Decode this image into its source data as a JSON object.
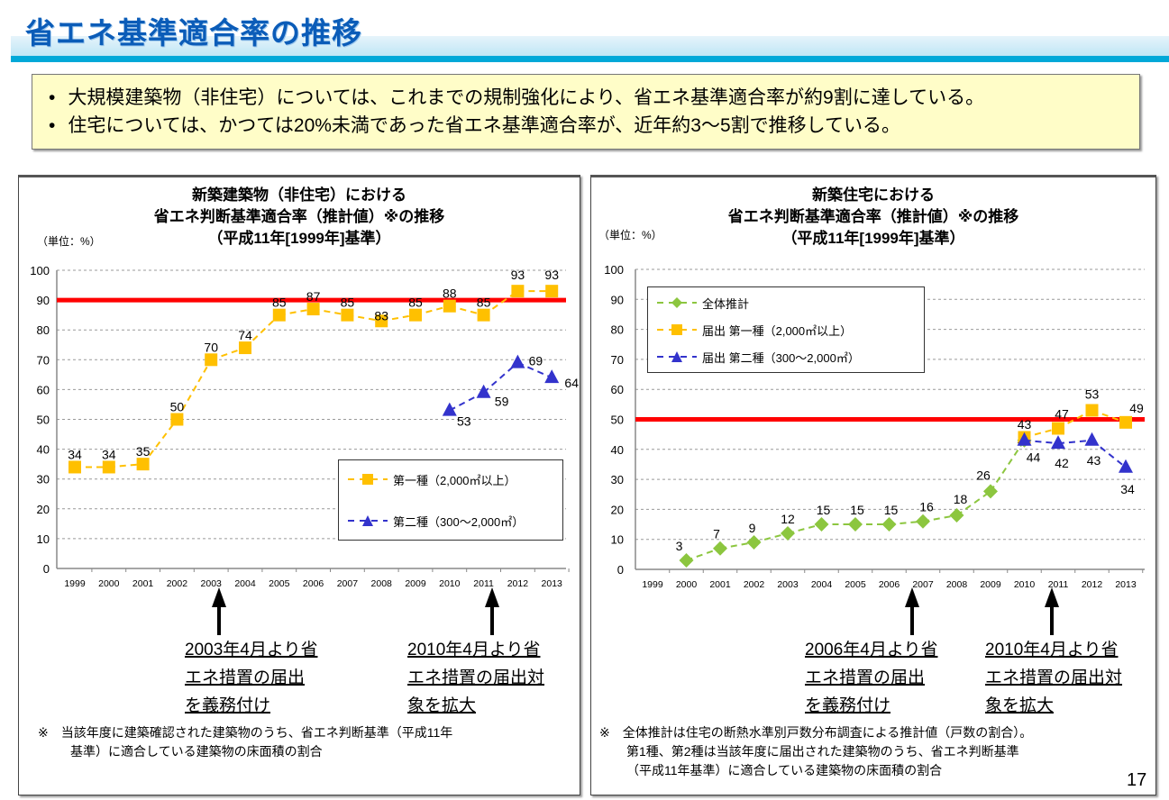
{
  "header": {
    "title": "省エネ基準適合率の推移"
  },
  "summary": [
    "大規模建築物（非住宅）については、これまでの規制強化により、省エネ基準適合率が約9割に達している。",
    "住宅については、かつては20%未満であった省エネ基準適合率が、近年約3～5割で推移している。"
  ],
  "colors": {
    "first_class": "#ffc000",
    "second_class": "#3333cc",
    "overall": "#8cc63f",
    "reference_line": "#ff0000",
    "title": "#0b5cb8"
  },
  "chart_data": [
    {
      "type": "line",
      "title": [
        "新築建築物（非住宅）における",
        "省エネ判断基準適合率（推計値）※の推移",
        "（平成11年[1999年]基準）"
      ],
      "unit": "（単位：%）",
      "categories": [
        "1999",
        "2000",
        "2001",
        "2002",
        "2003",
        "2004",
        "2005",
        "2006",
        "2007",
        "2008",
        "2009",
        "2010",
        "2011",
        "2012",
        "2013"
      ],
      "ylim": [
        0,
        100
      ],
      "yticks": [
        "0",
        "10",
        "20",
        "30",
        "40",
        "50",
        "60",
        "70",
        "80",
        "90",
        "100"
      ],
      "grid": true,
      "reference_line": 90,
      "legend_position": "bottom-right",
      "series": [
        {
          "name": "第一種（2,000㎡以上）",
          "marker": "square",
          "color": "#ffc000",
          "values": [
            34,
            34,
            35,
            50,
            70,
            74,
            85,
            87,
            85,
            83,
            85,
            88,
            85,
            93,
            93
          ]
        },
        {
          "name": "第二種（300～2,000㎡）",
          "marker": "triangle",
          "color": "#3333cc",
          "values": [
            null,
            null,
            null,
            null,
            null,
            null,
            null,
            null,
            null,
            null,
            null,
            53,
            59,
            69,
            64
          ]
        }
      ],
      "annotations": [
        {
          "year": "2003",
          "text": [
            "2003年4月より省",
            "エネ措置の届出",
            "を義務付け"
          ]
        },
        {
          "year": "2011",
          "text": [
            "2010年4月より省",
            "エネ措置の届出対",
            "象を拡大"
          ]
        }
      ],
      "footnote": [
        "※　当該年度に建築確認された建築物のうち、省エネ判断基準（平成11年",
        "基準）に適合している建築物の床面積の割合"
      ]
    },
    {
      "type": "line",
      "title": [
        "新築住宅における",
        "省エネ判断基準適合率（推計値）※の推移",
        "（平成11年[1999年]基準）"
      ],
      "unit": "（単位：%）",
      "categories": [
        "1999",
        "2000",
        "2001",
        "2002",
        "2003",
        "2004",
        "2005",
        "2006",
        "2007",
        "2008",
        "2009",
        "2010",
        "2011",
        "2012",
        "2013"
      ],
      "ylim": [
        0,
        100
      ],
      "yticks": [
        "0",
        "10",
        "20",
        "30",
        "40",
        "50",
        "60",
        "70",
        "80",
        "90",
        "100"
      ],
      "grid": true,
      "reference_line": 50,
      "legend_position": "top-left",
      "series": [
        {
          "name": "全体推計",
          "marker": "diamond",
          "color": "#8cc63f",
          "values": [
            null,
            3,
            7,
            9,
            12,
            15,
            15,
            15,
            16,
            18,
            26,
            43,
            null,
            null,
            null
          ]
        },
        {
          "name": "届出 第一種（2,000㎡以上）",
          "marker": "square",
          "color": "#ffc000",
          "values": [
            null,
            null,
            null,
            null,
            null,
            null,
            null,
            null,
            null,
            null,
            null,
            44,
            47,
            53,
            49
          ]
        },
        {
          "name": "届出 第二種（300～2,000㎡）",
          "marker": "triangle",
          "color": "#3333cc",
          "values": [
            null,
            null,
            null,
            null,
            null,
            null,
            null,
            null,
            null,
            null,
            null,
            43,
            42,
            43,
            34
          ]
        }
      ],
      "annotations": [
        {
          "year": "2007",
          "text": [
            "2006年4月より省",
            "エネ措置の届出",
            "を義務付け"
          ]
        },
        {
          "year": "2011",
          "text": [
            "2010年4月より省",
            "エネ措置の届出対",
            "象を拡大"
          ]
        }
      ],
      "footnote": [
        "※　全体推計は住宅の断熱水準別戸数分布調査による推計値（戸数の割合）。",
        "第1種、第2種は当該年度に届出された建築物のうち、省エネ判断基準",
        "（平成11年基準）に適合している建築物の床面積の割合"
      ]
    }
  ],
  "page_number": "17"
}
